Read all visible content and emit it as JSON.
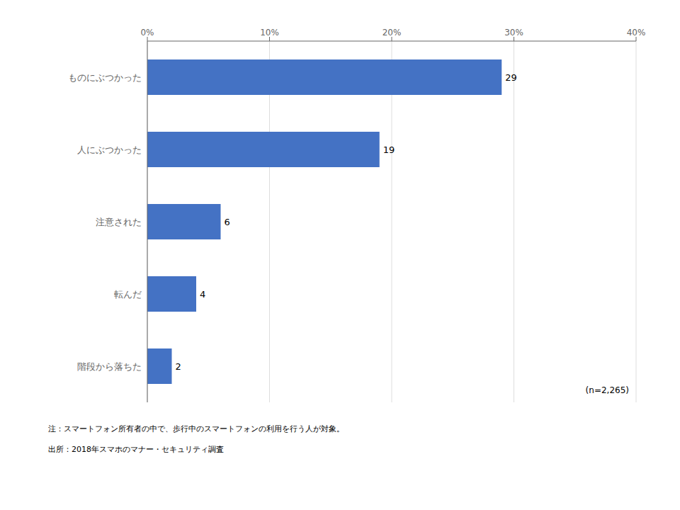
{
  "chart_data": {
    "type": "bar",
    "orientation": "horizontal",
    "categories": [
      "ものにぶつかった",
      "人にぶつかった",
      "注意された",
      "転んだ",
      "階段から落ちた"
    ],
    "values": [
      29,
      19,
      6,
      4,
      2
    ],
    "color": "#4472C4",
    "xlim": [
      0,
      40
    ],
    "xticks": [
      {
        "value": 0,
        "label": "0%"
      },
      {
        "value": 10,
        "label": "10%"
      },
      {
        "value": 20,
        "label": "20%"
      },
      {
        "value": 30,
        "label": "30%"
      },
      {
        "value": 40,
        "label": "40%"
      }
    ],
    "grid": true,
    "data_labels": true,
    "annotations": [
      "(n=2,265)"
    ],
    "notes": [
      "注：スマートフォン所有者の中で、歩行中のスマートフォンの利用を行う人が対象。",
      "出所：2018年スマホのマナー・セキュリティ調査"
    ]
  }
}
